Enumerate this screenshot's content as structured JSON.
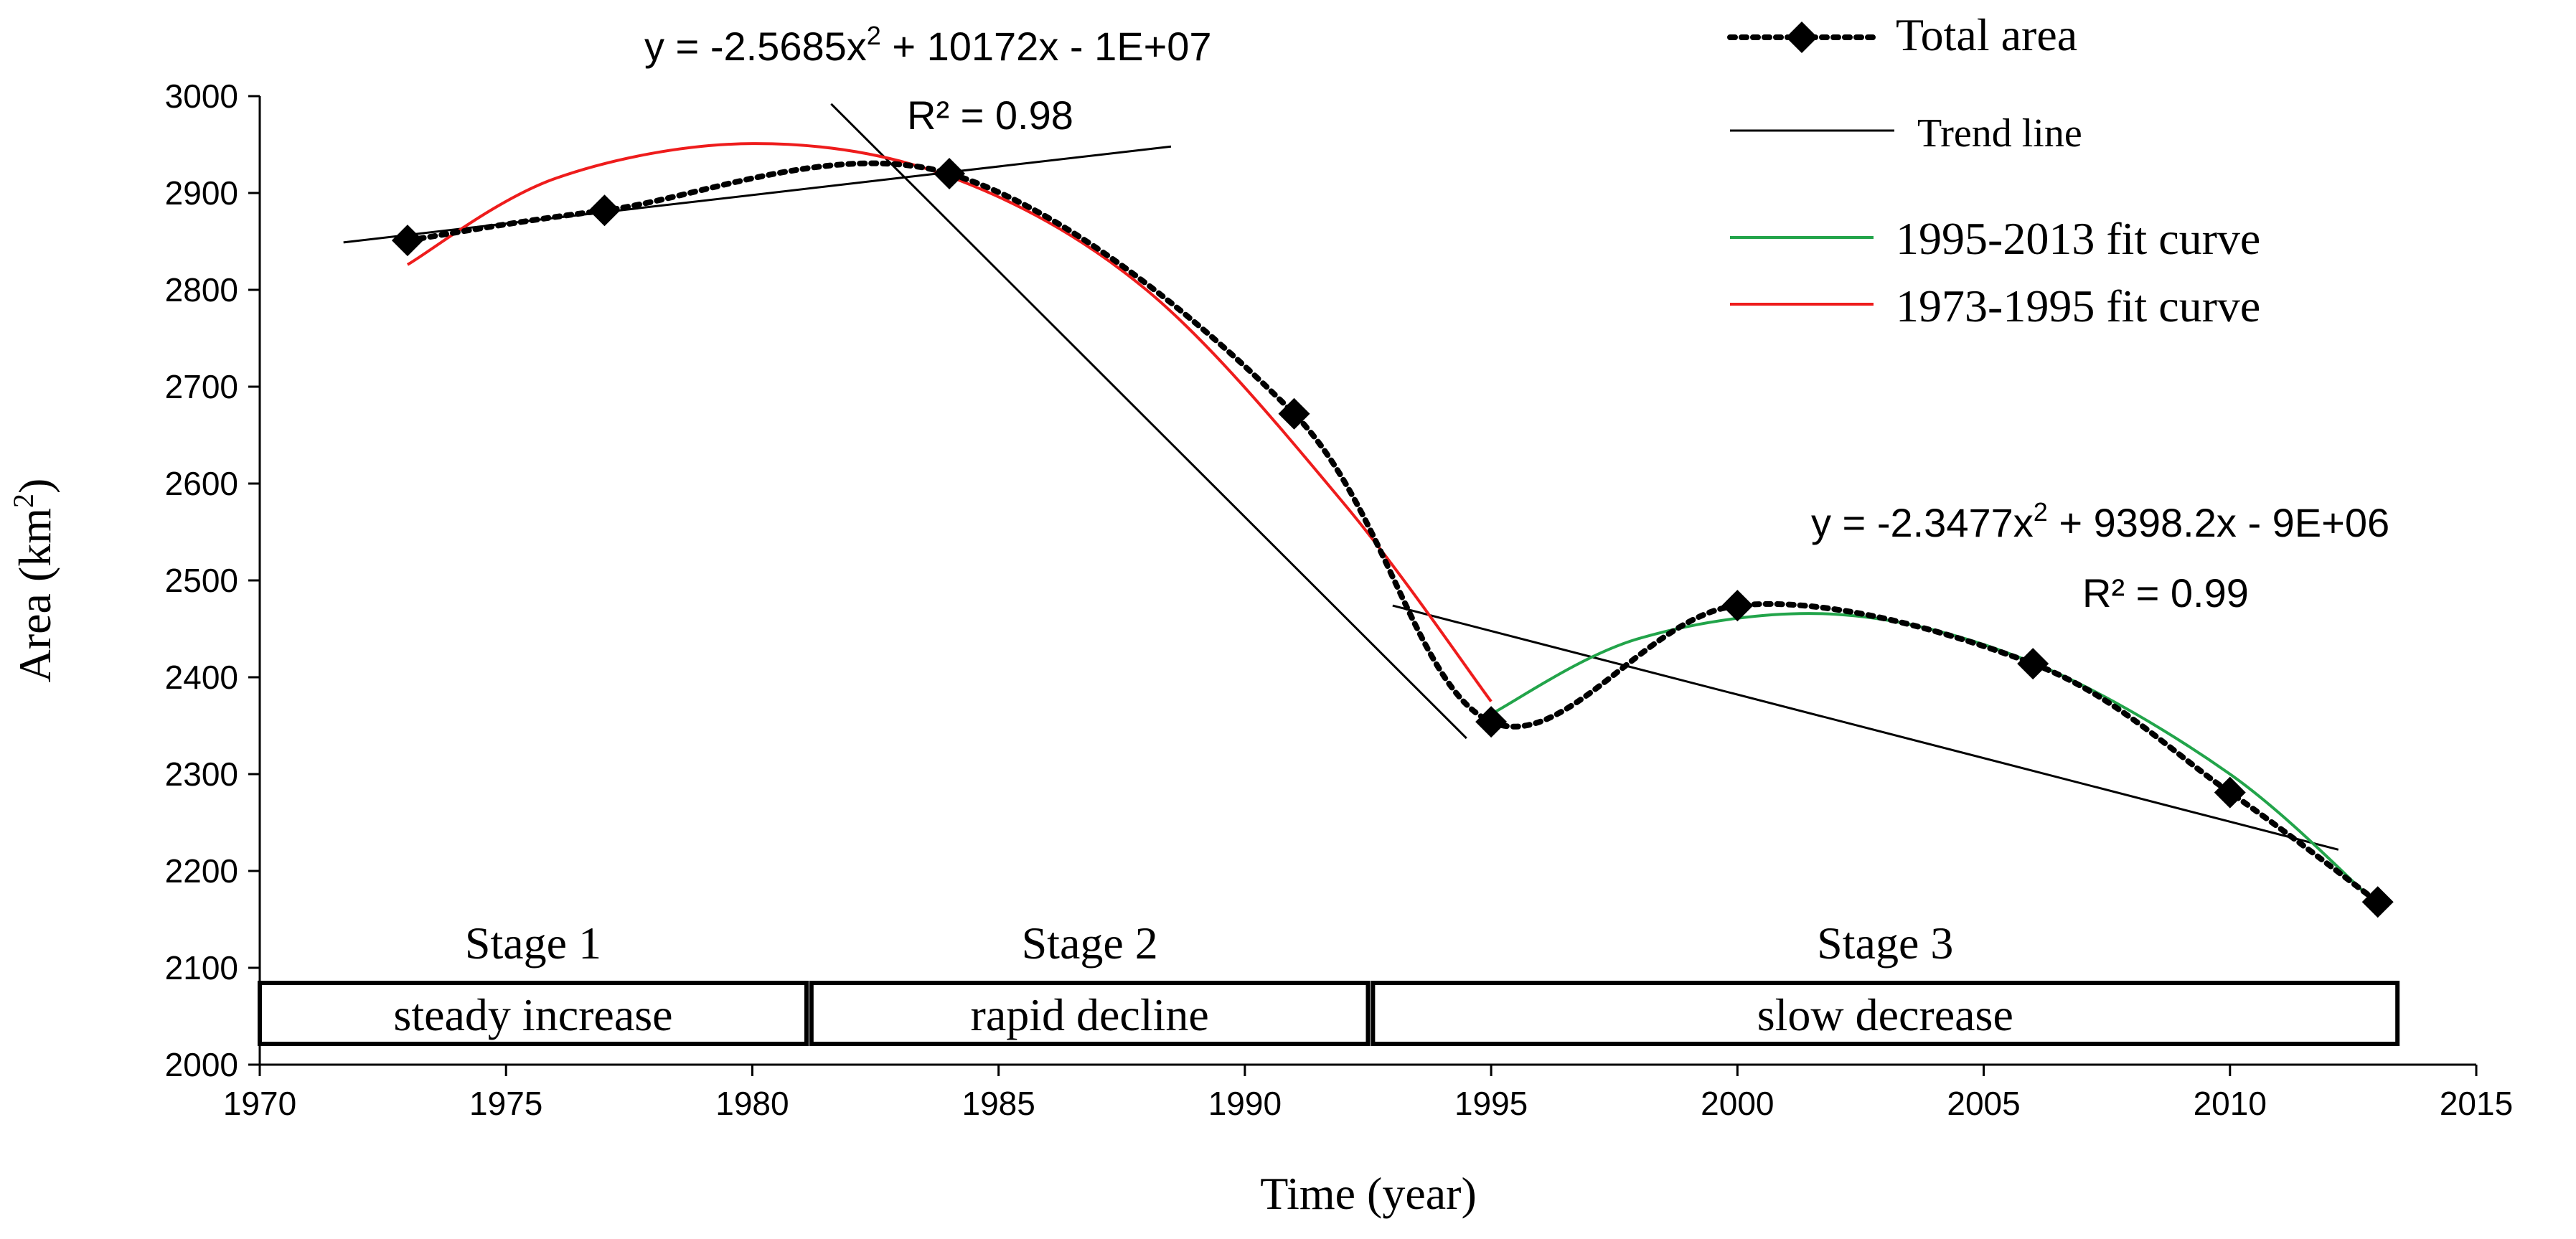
{
  "chart_data": {
    "type": "line",
    "title": "",
    "xlabel": "Time (year)",
    "ylabel": "Area (km",
    "ylabel_sup": "2",
    "ylabel_close": ")",
    "xlim": [
      1970,
      2015
    ],
    "ylim": [
      2000,
      3000
    ],
    "x_ticks": [
      1970,
      1975,
      1980,
      1985,
      1990,
      1995,
      2000,
      2005,
      2010,
      2015
    ],
    "y_ticks": [
      2000,
      2100,
      2200,
      2300,
      2400,
      2500,
      2600,
      2700,
      2800,
      2900,
      3000
    ],
    "grid": false,
    "legend_position": "top-right",
    "series": [
      {
        "name": "Total area",
        "style": "dotted-with-diamond-markers",
        "color": "#000000",
        "x": [
          1973,
          1977,
          1984,
          1991,
          1995,
          2000,
          2006,
          2010,
          2013
        ],
        "y": [
          2851,
          2882,
          2920,
          2672,
          2354,
          2474,
          2414,
          2281,
          2168
        ]
      },
      {
        "name": "Trend line",
        "color": "#000000",
        "segments": [
          {
            "x": [
              1971.7,
              1988.5
            ],
            "y": [
              2849,
              2948
            ]
          },
          {
            "x": [
              1981.6,
              1994.5
            ],
            "y": [
              2992,
              2337
            ]
          },
          {
            "x": [
              1993,
              2012.2
            ],
            "y": [
              2474,
              2222
            ]
          }
        ]
      },
      {
        "name": "1995-2013 fit curve",
        "color": "#22a44a",
        "x_range": [
          1995,
          2013
        ],
        "samples": [
          {
            "x": 1995,
            "y": 2362
          },
          {
            "x": 1998,
            "y": 2440
          },
          {
            "x": 2002,
            "y": 2465
          },
          {
            "x": 2006,
            "y": 2415
          },
          {
            "x": 2010,
            "y": 2300
          },
          {
            "x": 2013,
            "y": 2165
          }
        ]
      },
      {
        "name": "1973-1995 fit curve",
        "color": "#ee1c1c",
        "x_range": [
          1973,
          1995
        ],
        "samples": [
          {
            "x": 1973,
            "y": 2826
          },
          {
            "x": 1976,
            "y": 2915
          },
          {
            "x": 1980,
            "y": 2951
          },
          {
            "x": 1984,
            "y": 2917
          },
          {
            "x": 1988,
            "y": 2800
          },
          {
            "x": 1992,
            "y": 2580
          },
          {
            "x": 1995,
            "y": 2375
          }
        ]
      }
    ],
    "annotations": {
      "fit1_equation": "y = -2.5685x",
      "fit1_equation_sup": "2",
      "fit1_equation_rest": " + 10172x - 1E+07",
      "fit1_r2": "R² = 0.98",
      "fit2_equation": "y = -2.3477x",
      "fit2_equation_sup": "2",
      "fit2_equation_rest": " + 9398.2x - 9E+06",
      "fit2_r2": "R² = 0.99"
    },
    "stages": [
      {
        "title": "Stage 1",
        "label": "steady increase",
        "x_start": 1970,
        "x_end": 1981.1
      },
      {
        "title": "Stage 2",
        "label": "rapid decline",
        "x_start": 1981.2,
        "x_end": 1992.5
      },
      {
        "title": "Stage 3",
        "label": "slow decrease",
        "x_start": 1992.6,
        "x_end": 2013.4
      }
    ],
    "colors": {
      "total_area": "#000000",
      "trend_line": "#000000",
      "fit_1995_2013": "#22a44a",
      "fit_1973_1995": "#ee1c1c"
    }
  }
}
